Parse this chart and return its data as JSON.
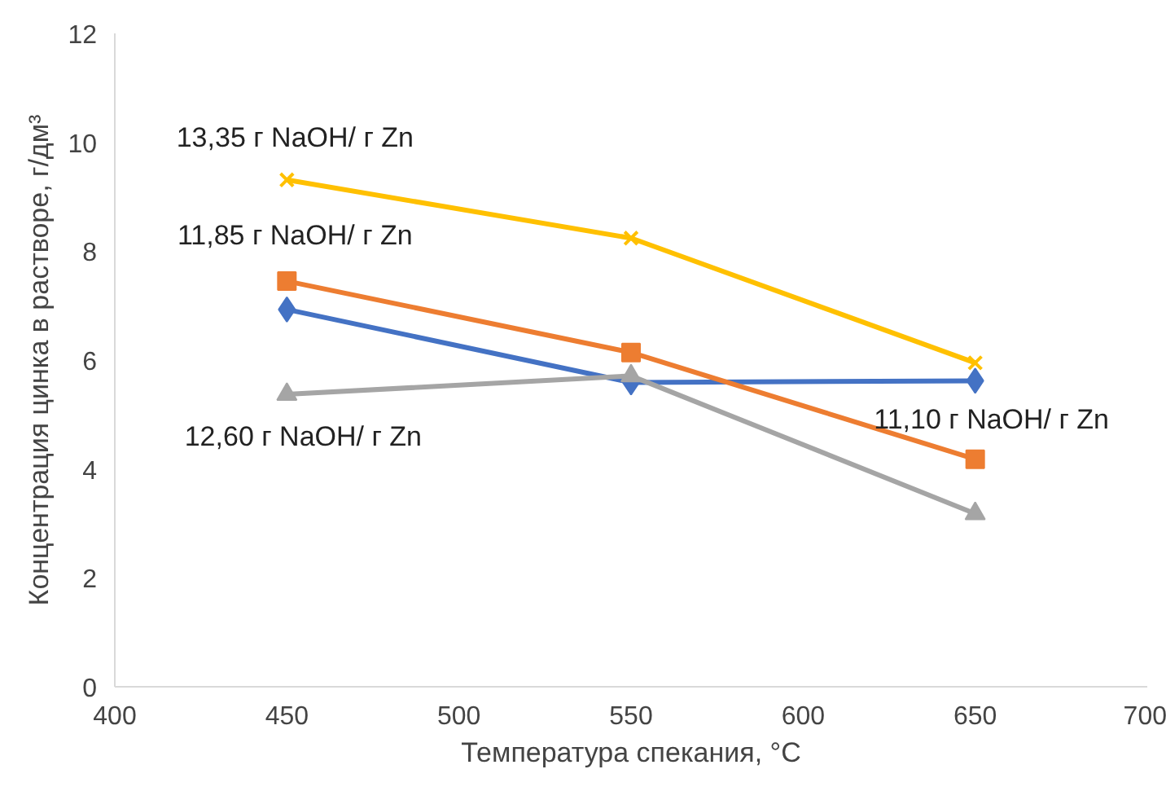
{
  "chart_data": {
    "type": "line",
    "xlabel": "Температура спекания, °C",
    "ylabel": "Концентрация цинка в растворе, г/дм³",
    "x": [
      450,
      550,
      650
    ],
    "series": [
      {
        "name": "11,10 г NaOH/ г Zn",
        "color": "#4472c4",
        "marker": "diamond",
        "values": [
          6.93,
          5.59,
          5.62
        ]
      },
      {
        "name": "11,85 г NaOH/ г Zn",
        "color": "#ed7d31",
        "marker": "square",
        "values": [
          7.45,
          6.14,
          4.18
        ]
      },
      {
        "name": "12,60 г NaOH/ г Zn",
        "color": "#a5a5a5",
        "marker": "triangle",
        "values": [
          5.37,
          5.71,
          3.18
        ]
      },
      {
        "name": "13,35 г NaOH/ г Zn",
        "color": "#ffc000",
        "marker": "cross",
        "values": [
          9.31,
          8.24,
          5.95
        ]
      }
    ],
    "xlim": [
      400,
      700
    ],
    "xticks": [
      400,
      450,
      500,
      550,
      600,
      650,
      700
    ],
    "ylim": [
      0,
      12
    ],
    "yticks": [
      0,
      2,
      4,
      6,
      8,
      10,
      12
    ],
    "grid": false
  }
}
